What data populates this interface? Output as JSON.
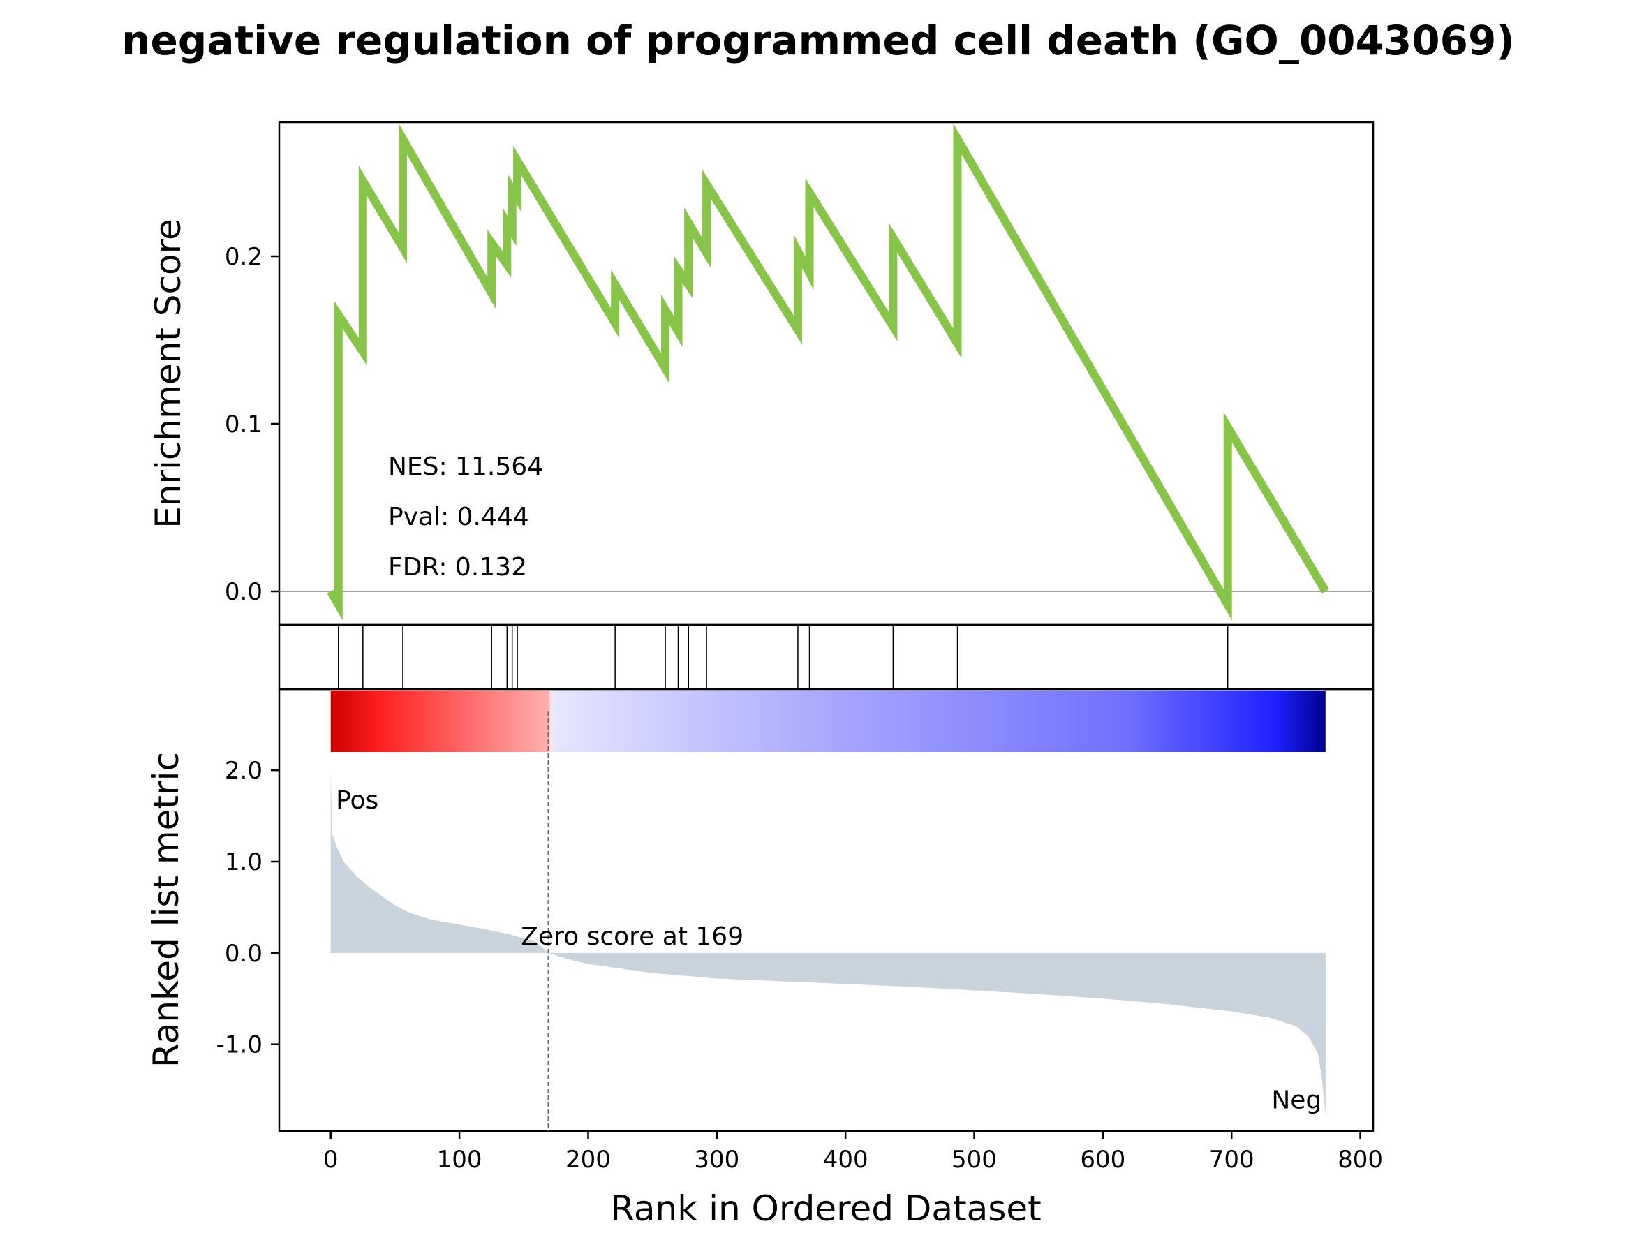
{
  "chart_data": {
    "type": "line",
    "title": "negative regulation of programmed cell death (GO_0043069)",
    "xlabel": "Rank in Ordered Dataset",
    "xlim": [
      -40,
      810
    ],
    "x_ticks": [
      0,
      100,
      200,
      300,
      400,
      500,
      600,
      700,
      800
    ],
    "x_tick_labels": [
      "0",
      "100",
      "200",
      "300",
      "400",
      "500",
      "600",
      "700",
      "800"
    ],
    "enrichment": {
      "ylabel": "Enrichment Score",
      "ylim": [
        -0.02,
        0.28
      ],
      "y_ticks": [
        0.0,
        0.1,
        0.2
      ],
      "y_tick_labels": [
        "0.0",
        "0.1",
        "0.2"
      ],
      "color": "#88c34a",
      "points": [
        [
          0,
          0.0
        ],
        [
          6,
          -0.008
        ],
        [
          6,
          0.165
        ],
        [
          25,
          0.143
        ],
        [
          25,
          0.245
        ],
        [
          56,
          0.205
        ],
        [
          56,
          0.27
        ],
        [
          125,
          0.178
        ],
        [
          125,
          0.208
        ],
        [
          137,
          0.195
        ],
        [
          137,
          0.22
        ],
        [
          141,
          0.215
        ],
        [
          141,
          0.24
        ],
        [
          145,
          0.235
        ],
        [
          145,
          0.257
        ],
        [
          221,
          0.16
        ],
        [
          221,
          0.183
        ],
        [
          260,
          0.133
        ],
        [
          260,
          0.168
        ],
        [
          270,
          0.155
        ],
        [
          270,
          0.192
        ],
        [
          278,
          0.183
        ],
        [
          278,
          0.22
        ],
        [
          292,
          0.202
        ],
        [
          292,
          0.243
        ],
        [
          363,
          0.156
        ],
        [
          363,
          0.203
        ],
        [
          372,
          0.19
        ],
        [
          372,
          0.238
        ],
        [
          437,
          0.158
        ],
        [
          437,
          0.211
        ],
        [
          487,
          0.148
        ],
        [
          487,
          0.27
        ],
        [
          697,
          -0.008
        ],
        [
          697,
          0.098
        ],
        [
          773,
          0.0
        ]
      ],
      "stats": [
        "NES: 11.564",
        "Pval: 0.444",
        "FDR: 0.132"
      ]
    },
    "hits": [
      6,
      25,
      56,
      125,
      137,
      141,
      145,
      221,
      260,
      270,
      278,
      292,
      363,
      372,
      437,
      487,
      697
    ],
    "ranked_metric": {
      "ylabel": "Ranked list metric",
      "ylim": [
        -1.95,
        2.2
      ],
      "y_ticks": [
        2.0,
        1.0,
        0.0,
        -1.0
      ],
      "y_tick_labels": [
        "2.0",
        "1.0",
        "0.0",
        "-1.0"
      ],
      "fill_color": "#c9d3dc",
      "curve": [
        [
          0,
          2.0
        ],
        [
          1,
          1.3
        ],
        [
          5,
          1.15
        ],
        [
          10,
          1.0
        ],
        [
          20,
          0.84
        ],
        [
          30,
          0.72
        ],
        [
          40,
          0.62
        ],
        [
          50,
          0.52
        ],
        [
          60,
          0.45
        ],
        [
          70,
          0.4
        ],
        [
          80,
          0.36
        ],
        [
          100,
          0.31
        ],
        [
          120,
          0.26
        ],
        [
          140,
          0.2
        ],
        [
          160,
          0.12
        ],
        [
          169,
          0.0
        ],
        [
          185,
          -0.07
        ],
        [
          200,
          -0.12
        ],
        [
          250,
          -0.22
        ],
        [
          300,
          -0.28
        ],
        [
          350,
          -0.31
        ],
        [
          400,
          -0.34
        ],
        [
          450,
          -0.37
        ],
        [
          500,
          -0.41
        ],
        [
          550,
          -0.45
        ],
        [
          600,
          -0.5
        ],
        [
          650,
          -0.56
        ],
        [
          700,
          -0.64
        ],
        [
          730,
          -0.71
        ],
        [
          750,
          -0.8
        ],
        [
          760,
          -0.92
        ],
        [
          767,
          -1.1
        ],
        [
          770,
          -1.35
        ],
        [
          773,
          -1.78
        ]
      ],
      "zero_score_rank": 169,
      "zero_score_label": "Zero score at 169",
      "pos_label": "Pos",
      "neg_label": "Neg",
      "pos_color": "#ff0000",
      "neg_color": "#0000ff"
    },
    "colorbar": {
      "range": [
        0,
        773
      ],
      "stops": [
        [
          0,
          "#ff0000"
        ],
        [
          0.22,
          "#ffe8e8"
        ],
        [
          0.49,
          "#ffffff"
        ],
        [
          1.0,
          "#0000a0"
        ]
      ]
    },
    "n_genes": 773
  }
}
